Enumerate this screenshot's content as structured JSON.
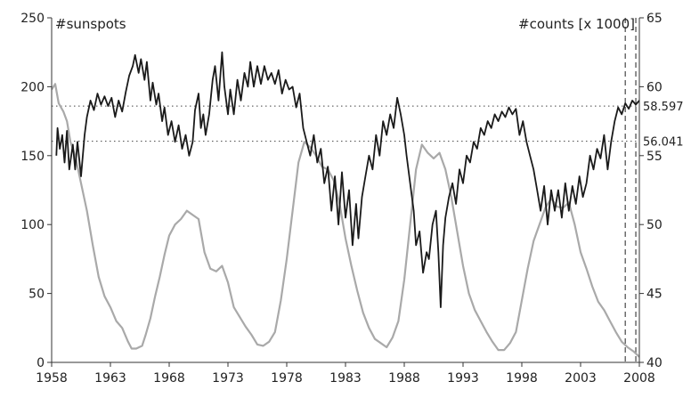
{
  "chart_data": {
    "type": "line",
    "x_ticks": [
      "1958",
      "1963",
      "1968",
      "1973",
      "1978",
      "1983",
      "1988",
      "1993",
      "1998",
      "2003",
      "2008"
    ],
    "x_range": [
      1958,
      2008
    ],
    "left_axis": {
      "label": "#sunspots",
      "ticks": [
        "0",
        "50",
        "100",
        "150",
        "200",
        "250"
      ],
      "range": [
        0,
        250
      ]
    },
    "right_axis": {
      "label": "#counts [x 1000]",
      "ticks": [
        "40",
        "45",
        "50",
        "55",
        "60",
        "65"
      ],
      "range": [
        40,
        65
      ]
    },
    "reference_lines": [
      {
        "axis": "right",
        "value": 58.597,
        "label": "58.597",
        "style": "dotted"
      },
      {
        "axis": "right",
        "value": 56.041,
        "label": "56.041",
        "style": "dotted"
      }
    ],
    "vertical_markers": [
      {
        "x": 2006.8,
        "style": "dashed"
      },
      {
        "x": 2007.7,
        "style": "dashed"
      }
    ],
    "series": [
      {
        "axis": "left",
        "color": "#a9a9a9",
        "points": [
          [
            1958.0,
            198
          ],
          [
            1958.3,
            202
          ],
          [
            1958.6,
            188
          ],
          [
            1959.0,
            182
          ],
          [
            1959.3,
            175
          ],
          [
            1959.6,
            160
          ],
          [
            1960.0,
            150
          ],
          [
            1960.5,
            130
          ],
          [
            1961.0,
            110
          ],
          [
            1961.5,
            85
          ],
          [
            1962.0,
            62
          ],
          [
            1962.5,
            48
          ],
          [
            1963.0,
            40
          ],
          [
            1963.5,
            30
          ],
          [
            1964.0,
            25
          ],
          [
            1964.5,
            15
          ],
          [
            1964.8,
            10
          ],
          [
            1965.2,
            10
          ],
          [
            1965.7,
            12
          ],
          [
            1966.0,
            20
          ],
          [
            1966.4,
            32
          ],
          [
            1966.8,
            48
          ],
          [
            1967.2,
            62
          ],
          [
            1967.6,
            78
          ],
          [
            1968.0,
            92
          ],
          [
            1968.5,
            100
          ],
          [
            1969.0,
            104
          ],
          [
            1969.5,
            110
          ],
          [
            1970.0,
            107
          ],
          [
            1970.5,
            104
          ],
          [
            1971.0,
            80
          ],
          [
            1971.5,
            68
          ],
          [
            1972.0,
            66
          ],
          [
            1972.5,
            70
          ],
          [
            1973.0,
            58
          ],
          [
            1973.5,
            40
          ],
          [
            1974.0,
            33
          ],
          [
            1974.5,
            26
          ],
          [
            1975.0,
            20
          ],
          [
            1975.5,
            13
          ],
          [
            1976.0,
            12
          ],
          [
            1976.5,
            15
          ],
          [
            1977.0,
            22
          ],
          [
            1977.5,
            45
          ],
          [
            1978.0,
            75
          ],
          [
            1978.5,
            110
          ],
          [
            1979.0,
            145
          ],
          [
            1979.5,
            160
          ],
          [
            1980.0,
            156
          ],
          [
            1980.5,
            150
          ],
          [
            1981.0,
            142
          ],
          [
            1981.5,
            140
          ],
          [
            1982.0,
            132
          ],
          [
            1982.5,
            115
          ],
          [
            1983.0,
            90
          ],
          [
            1983.5,
            70
          ],
          [
            1984.0,
            52
          ],
          [
            1984.5,
            36
          ],
          [
            1985.0,
            25
          ],
          [
            1985.5,
            17
          ],
          [
            1986.0,
            14
          ],
          [
            1986.5,
            11
          ],
          [
            1987.0,
            18
          ],
          [
            1987.5,
            30
          ],
          [
            1988.0,
            60
          ],
          [
            1988.5,
            100
          ],
          [
            1989.0,
            140
          ],
          [
            1989.5,
            158
          ],
          [
            1990.0,
            152
          ],
          [
            1990.5,
            148
          ],
          [
            1991.0,
            152
          ],
          [
            1991.5,
            140
          ],
          [
            1992.0,
            120
          ],
          [
            1992.5,
            95
          ],
          [
            1993.0,
            70
          ],
          [
            1993.5,
            50
          ],
          [
            1994.0,
            38
          ],
          [
            1994.5,
            30
          ],
          [
            1995.0,
            22
          ],
          [
            1995.5,
            15
          ],
          [
            1996.0,
            9
          ],
          [
            1996.5,
            9
          ],
          [
            1997.0,
            14
          ],
          [
            1997.5,
            22
          ],
          [
            1998.0,
            45
          ],
          [
            1998.5,
            68
          ],
          [
            1999.0,
            88
          ],
          [
            1999.5,
            100
          ],
          [
            2000.0,
            112
          ],
          [
            2000.5,
            119
          ],
          [
            2001.0,
            113
          ],
          [
            2001.5,
            112
          ],
          [
            2002.0,
            116
          ],
          [
            2002.5,
            100
          ],
          [
            2003.0,
            80
          ],
          [
            2003.5,
            68
          ],
          [
            2004.0,
            55
          ],
          [
            2004.5,
            44
          ],
          [
            2005.0,
            38
          ],
          [
            2005.5,
            30
          ],
          [
            2006.0,
            22
          ],
          [
            2006.5,
            15
          ],
          [
            2007.0,
            11
          ],
          [
            2007.5,
            8
          ],
          [
            2008.0,
            4
          ]
        ]
      },
      {
        "axis": "right",
        "color": "#1a1a1a",
        "points": [
          [
            1958.4,
            55.0
          ],
          [
            1958.5,
            57.0
          ],
          [
            1958.7,
            55.5
          ],
          [
            1958.9,
            56.5
          ],
          [
            1959.1,
            54.5
          ],
          [
            1959.3,
            56.8
          ],
          [
            1959.5,
            54.0
          ],
          [
            1959.8,
            55.8
          ],
          [
            1960.0,
            54.0
          ],
          [
            1960.2,
            56.0
          ],
          [
            1960.5,
            53.5
          ],
          [
            1960.8,
            56.5
          ],
          [
            1961.0,
            57.8
          ],
          [
            1961.3,
            59.0
          ],
          [
            1961.6,
            58.3
          ],
          [
            1961.9,
            59.5
          ],
          [
            1962.2,
            58.7
          ],
          [
            1962.5,
            59.3
          ],
          [
            1962.8,
            58.6
          ],
          [
            1963.1,
            59.2
          ],
          [
            1963.4,
            57.8
          ],
          [
            1963.7,
            59.0
          ],
          [
            1964.0,
            58.2
          ],
          [
            1964.3,
            59.6
          ],
          [
            1964.6,
            60.8
          ],
          [
            1964.9,
            61.5
          ],
          [
            1965.1,
            62.3
          ],
          [
            1965.4,
            61.0
          ],
          [
            1965.6,
            62.0
          ],
          [
            1965.9,
            60.5
          ],
          [
            1966.1,
            61.8
          ],
          [
            1966.4,
            59.0
          ],
          [
            1966.6,
            60.3
          ],
          [
            1966.9,
            58.7
          ],
          [
            1967.1,
            59.5
          ],
          [
            1967.4,
            57.5
          ],
          [
            1967.6,
            58.5
          ],
          [
            1967.9,
            56.5
          ],
          [
            1968.2,
            57.5
          ],
          [
            1968.5,
            56.0
          ],
          [
            1968.8,
            57.2
          ],
          [
            1969.1,
            55.5
          ],
          [
            1969.4,
            56.5
          ],
          [
            1969.7,
            55.0
          ],
          [
            1970.0,
            56.0
          ],
          [
            1970.2,
            58.3
          ],
          [
            1970.5,
            59.5
          ],
          [
            1970.7,
            57.0
          ],
          [
            1970.9,
            58.0
          ],
          [
            1971.1,
            56.5
          ],
          [
            1971.4,
            58.0
          ],
          [
            1971.7,
            60.5
          ],
          [
            1971.9,
            61.5
          ],
          [
            1972.2,
            59.0
          ],
          [
            1972.5,
            62.5
          ],
          [
            1972.7,
            60.0
          ],
          [
            1973.0,
            58.0
          ],
          [
            1973.2,
            59.8
          ],
          [
            1973.5,
            58.0
          ],
          [
            1973.8,
            60.5
          ],
          [
            1974.1,
            59.0
          ],
          [
            1974.4,
            61.0
          ],
          [
            1974.7,
            60.0
          ],
          [
            1974.9,
            61.8
          ],
          [
            1975.2,
            60.0
          ],
          [
            1975.5,
            61.5
          ],
          [
            1975.8,
            60.2
          ],
          [
            1976.1,
            61.5
          ],
          [
            1976.4,
            60.5
          ],
          [
            1976.7,
            61.0
          ],
          [
            1977.0,
            60.2
          ],
          [
            1977.3,
            61.2
          ],
          [
            1977.6,
            59.5
          ],
          [
            1977.9,
            60.5
          ],
          [
            1978.2,
            59.8
          ],
          [
            1978.5,
            60.0
          ],
          [
            1978.8,
            58.5
          ],
          [
            1979.1,
            59.5
          ],
          [
            1979.4,
            57.0
          ],
          [
            1979.7,
            56.0
          ],
          [
            1980.0,
            55.0
          ],
          [
            1980.3,
            56.5
          ],
          [
            1980.6,
            54.5
          ],
          [
            1980.9,
            55.5
          ],
          [
            1981.2,
            53.0
          ],
          [
            1981.5,
            54.2
          ],
          [
            1981.8,
            51.0
          ],
          [
            1982.1,
            53.5
          ],
          [
            1982.4,
            50.0
          ],
          [
            1982.7,
            53.8
          ],
          [
            1983.0,
            50.5
          ],
          [
            1983.3,
            52.5
          ],
          [
            1983.6,
            48.5
          ],
          [
            1983.9,
            51.5
          ],
          [
            1984.1,
            49.0
          ],
          [
            1984.4,
            52.0
          ],
          [
            1984.7,
            53.5
          ],
          [
            1985.0,
            55.0
          ],
          [
            1985.3,
            54.0
          ],
          [
            1985.6,
            56.5
          ],
          [
            1985.9,
            55.0
          ],
          [
            1986.2,
            57.5
          ],
          [
            1986.5,
            56.5
          ],
          [
            1986.8,
            58.0
          ],
          [
            1987.1,
            57.0
          ],
          [
            1987.4,
            59.2
          ],
          [
            1987.7,
            58.0
          ],
          [
            1988.0,
            56.5
          ],
          [
            1988.2,
            55.0
          ],
          [
            1988.5,
            53.0
          ],
          [
            1988.8,
            51.0
          ],
          [
            1989.0,
            48.5
          ],
          [
            1989.3,
            49.5
          ],
          [
            1989.6,
            46.5
          ],
          [
            1989.9,
            48.0
          ],
          [
            1990.1,
            47.5
          ],
          [
            1990.4,
            50.0
          ],
          [
            1990.7,
            51.0
          ],
          [
            1990.9,
            48.0
          ],
          [
            1991.1,
            44.0
          ],
          [
            1991.3,
            48.5
          ],
          [
            1991.5,
            50.5
          ],
          [
            1991.8,
            52.0
          ],
          [
            1992.1,
            53.0
          ],
          [
            1992.4,
            51.5
          ],
          [
            1992.7,
            54.0
          ],
          [
            1993.0,
            53.0
          ],
          [
            1993.3,
            55.0
          ],
          [
            1993.6,
            54.5
          ],
          [
            1993.9,
            56.0
          ],
          [
            1994.2,
            55.5
          ],
          [
            1994.5,
            57.0
          ],
          [
            1994.8,
            56.5
          ],
          [
            1995.1,
            57.5
          ],
          [
            1995.4,
            57.0
          ],
          [
            1995.7,
            58.0
          ],
          [
            1996.0,
            57.5
          ],
          [
            1996.3,
            58.2
          ],
          [
            1996.6,
            57.8
          ],
          [
            1996.9,
            58.5
          ],
          [
            1997.2,
            58.0
          ],
          [
            1997.5,
            58.4
          ],
          [
            1997.8,
            56.5
          ],
          [
            1998.1,
            57.5
          ],
          [
            1998.4,
            56.0
          ],
          [
            1998.7,
            55.0
          ],
          [
            1999.0,
            54.0
          ],
          [
            1999.3,
            52.5
          ],
          [
            1999.6,
            51.0
          ],
          [
            1999.9,
            52.8
          ],
          [
            2000.2,
            50.0
          ],
          [
            2000.5,
            52.5
          ],
          [
            2000.8,
            51.0
          ],
          [
            2001.1,
            52.5
          ],
          [
            2001.4,
            50.5
          ],
          [
            2001.7,
            53.0
          ],
          [
            2002.0,
            51.0
          ],
          [
            2002.3,
            52.8
          ],
          [
            2002.6,
            51.5
          ],
          [
            2002.9,
            53.5
          ],
          [
            2003.2,
            52.0
          ],
          [
            2003.5,
            53.0
          ],
          [
            2003.8,
            55.0
          ],
          [
            2004.1,
            54.0
          ],
          [
            2004.4,
            55.5
          ],
          [
            2004.7,
            54.8
          ],
          [
            2005.0,
            56.5
          ],
          [
            2005.3,
            54.0
          ],
          [
            2005.6,
            56.0
          ],
          [
            2005.9,
            57.5
          ],
          [
            2006.2,
            58.5
          ],
          [
            2006.5,
            58.0
          ],
          [
            2006.8,
            58.8
          ],
          [
            2007.1,
            58.4
          ],
          [
            2007.4,
            59.0
          ],
          [
            2007.7,
            58.7
          ],
          [
            2008.0,
            59.0
          ]
        ]
      }
    ]
  }
}
